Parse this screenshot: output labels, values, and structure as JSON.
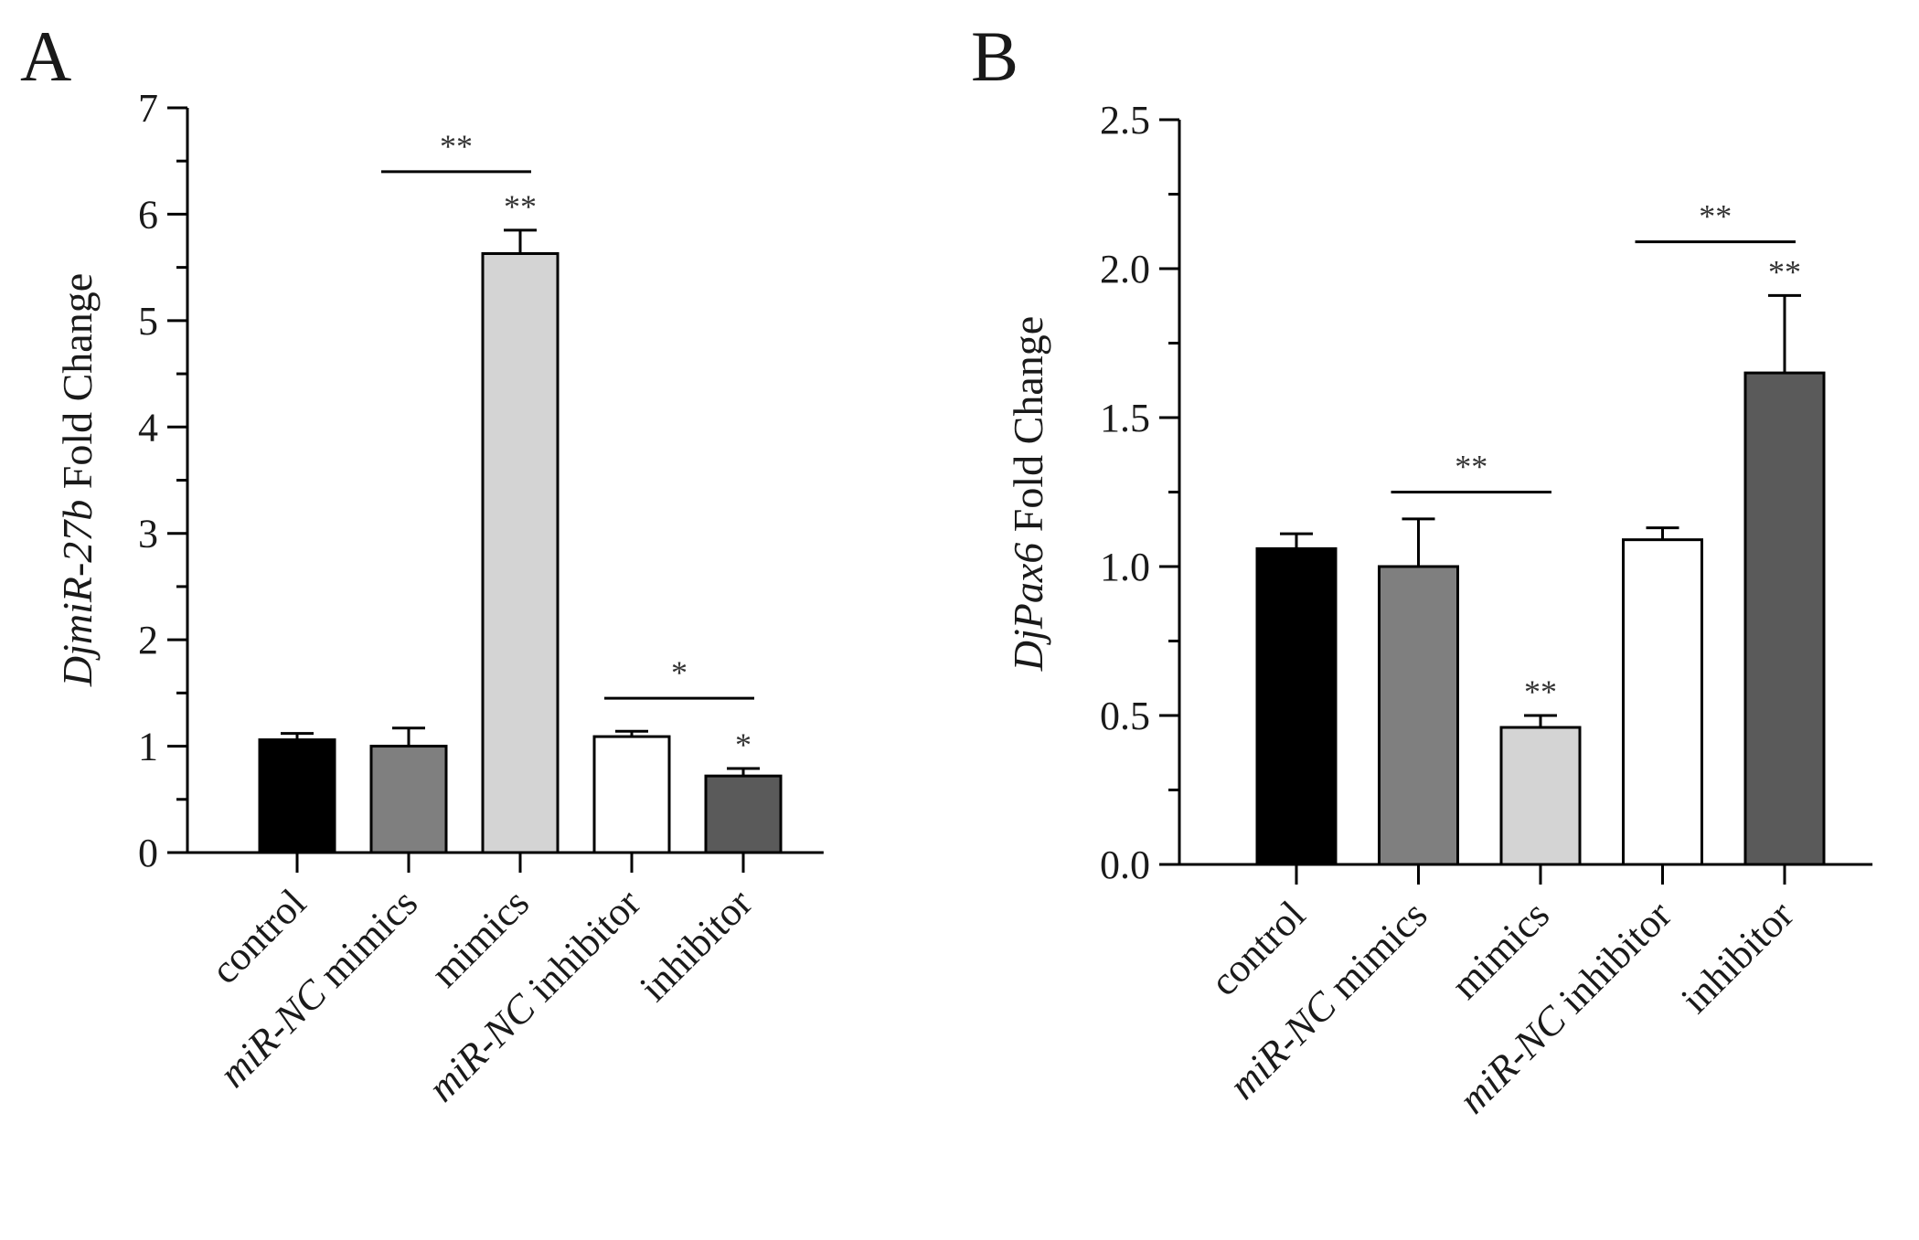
{
  "chart_data": [
    {
      "type": "bar",
      "panel": "A",
      "ylabel_parts": [
        {
          "text": "DjmiR-27b",
          "italic": true
        },
        {
          "text": " Fold Change",
          "italic": false
        }
      ],
      "ylim": [
        0,
        7
      ],
      "yticks": [
        0,
        1,
        2,
        3,
        4,
        5,
        6,
        7
      ],
      "ytick_labels": [
        "0",
        "1",
        "2",
        "3",
        "4",
        "5",
        "6",
        "7"
      ],
      "categories": [
        {
          "id": "control",
          "parts": [
            {
              "text": "control",
              "italic": false
            }
          ]
        },
        {
          "id": "nc-mimics",
          "parts": [
            {
              "text": "miR-NC",
              "italic": true
            },
            {
              "text": " mimics",
              "italic": false
            }
          ]
        },
        {
          "id": "mimics",
          "parts": [
            {
              "text": "mimics",
              "italic": false
            }
          ]
        },
        {
          "id": "nc-inhibitor",
          "parts": [
            {
              "text": "miR-NC",
              "italic": true
            },
            {
              "text": " inhibitor",
              "italic": false
            }
          ]
        },
        {
          "id": "inhibitor",
          "parts": [
            {
              "text": "inhibitor",
              "italic": false
            }
          ]
        }
      ],
      "values": [
        1.06,
        1.0,
        5.63,
        1.09,
        0.72
      ],
      "errors": [
        0.06,
        0.17,
        0.22,
        0.05,
        0.07
      ],
      "colors": [
        "#000000",
        "#7f7f7f",
        "#d4d4d4",
        "#ffffff",
        "#5a5a5a"
      ],
      "bar_stars": [
        "",
        "",
        "**",
        "",
        "*"
      ],
      "brackets": [
        {
          "from": 1,
          "to": 2,
          "y": 6.4,
          "label": "**"
        },
        {
          "from": 3,
          "to": 4,
          "y": 1.45,
          "label": "*"
        }
      ]
    },
    {
      "type": "bar",
      "panel": "B",
      "ylabel_parts": [
        {
          "text": "DjPax6",
          "italic": true
        },
        {
          "text": " Fold Change",
          "italic": false
        }
      ],
      "ylim": [
        0,
        2.5
      ],
      "yticks": [
        0.0,
        0.5,
        1.0,
        1.5,
        2.0,
        2.5
      ],
      "ytick_labels": [
        "0.0",
        "0.5",
        "1.0",
        "1.5",
        "2.0",
        "2.5"
      ],
      "categories": [
        {
          "id": "control",
          "parts": [
            {
              "text": "control",
              "italic": false
            }
          ]
        },
        {
          "id": "nc-mimics",
          "parts": [
            {
              "text": "miR-NC",
              "italic": true
            },
            {
              "text": " mimics",
              "italic": false
            }
          ]
        },
        {
          "id": "mimics",
          "parts": [
            {
              "text": "mimics",
              "italic": false
            }
          ]
        },
        {
          "id": "nc-inhibitor",
          "parts": [
            {
              "text": "miR-NC",
              "italic": true
            },
            {
              "text": " inhibitor",
              "italic": false
            }
          ]
        },
        {
          "id": "inhibitor",
          "parts": [
            {
              "text": "inhibitor",
              "italic": false
            }
          ]
        }
      ],
      "values": [
        1.06,
        1.0,
        0.46,
        1.09,
        1.65
      ],
      "errors": [
        0.05,
        0.16,
        0.04,
        0.04,
        0.26
      ],
      "colors": [
        "#000000",
        "#7f7f7f",
        "#d4d4d4",
        "#ffffff",
        "#5a5a5a"
      ],
      "bar_stars": [
        "",
        "",
        "**",
        "",
        "**"
      ],
      "brackets": [
        {
          "from": 1,
          "to": 2,
          "y": 1.25,
          "label": "**"
        },
        {
          "from": 3,
          "to": 4,
          "y": 2.09,
          "label": "**"
        }
      ]
    }
  ]
}
